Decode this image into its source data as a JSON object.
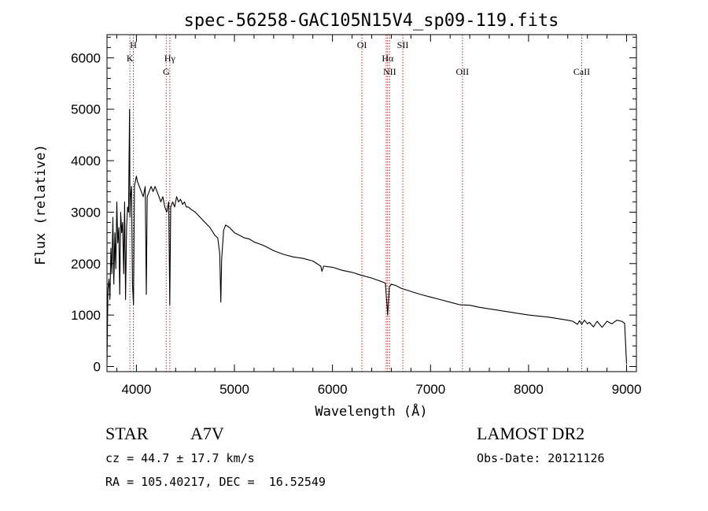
{
  "chart_data": {
    "type": "line",
    "title": "spec-56258-GAC105N15V4_sp09-119.fits",
    "xlabel": "Wavelength (Å)",
    "ylabel": "Flux (relative)",
    "xlim": [
      3700,
      9100
    ],
    "ylim": [
      -100,
      6450
    ],
    "xticks": [
      4000,
      5000,
      6000,
      7000,
      8000,
      9000
    ],
    "yticks": [
      0,
      1000,
      2000,
      3000,
      4000,
      5000,
      6000
    ],
    "xtick_labels": [
      "4000",
      "5000",
      "6000",
      "7000",
      "8000",
      "9000"
    ],
    "ytick_labels": [
      "0",
      "1000",
      "2000",
      "3000",
      "4000",
      "5000",
      "6000"
    ],
    "grid": false,
    "line_color": "#000000",
    "marker_color": "#cc2222",
    "spectral_lines": [
      {
        "wavelength": 3934,
        "label": "K",
        "row": 2
      },
      {
        "wavelength": 3969,
        "label": "H",
        "row": 1
      },
      {
        "wavelength": 4304,
        "label": "G",
        "row": 3
      },
      {
        "wavelength": 4341,
        "label": "Hγ",
        "row": 2
      },
      {
        "wavelength": 6300,
        "label": "OI",
        "row": 1
      },
      {
        "wavelength": 6548,
        "label": "",
        "row": 0
      },
      {
        "wavelength": 6563,
        "label": "Hα",
        "row": 2
      },
      {
        "wavelength": 6583,
        "label": "NII",
        "row": 3
      },
      {
        "wavelength": 6717,
        "label": "SII",
        "row": 1
      },
      {
        "wavelength": 7325,
        "label": "OII",
        "row": 3
      },
      {
        "wavelength": 8542,
        "label": "CaII",
        "row": 3
      }
    ],
    "series": [
      {
        "x": [
          3700,
          3710,
          3720,
          3730,
          3740,
          3750,
          3760,
          3770,
          3780,
          3790,
          3800,
          3810,
          3820,
          3830,
          3840,
          3850,
          3860,
          3870,
          3880,
          3889,
          3900,
          3910,
          3920,
          3930,
          3934,
          3940,
          3950,
          3960,
          3970,
          3980,
          3990,
          4000,
          4010,
          4030,
          4050,
          4070,
          4090,
          4101,
          4110,
          4130,
          4150,
          4170,
          4190,
          4210,
          4230,
          4250,
          4270,
          4290,
          4310,
          4330,
          4340,
          4350,
          4370,
          4390,
          4410,
          4430,
          4450,
          4470,
          4490,
          4510,
          4530,
          4560,
          4600,
          4650,
          4700,
          4750,
          4800,
          4830,
          4850,
          4861,
          4870,
          4890,
          4910,
          4950,
          5000,
          5050,
          5100,
          5150,
          5200,
          5300,
          5400,
          5500,
          5600,
          5700,
          5800,
          5880,
          5893,
          5910,
          6000,
          6100,
          6200,
          6300,
          6400,
          6500,
          6540,
          6563,
          6580,
          6600,
          6650,
          6700,
          6800,
          6900,
          7000,
          7100,
          7200,
          7300,
          7400,
          7500,
          7600,
          7700,
          7800,
          7900,
          8000,
          8100,
          8200,
          8300,
          8400,
          8450,
          8498,
          8520,
          8542,
          8570,
          8600,
          8620,
          8662,
          8700,
          8750,
          8800,
          8850,
          8900,
          8950,
          8980,
          9000
        ],
        "y": [
          100,
          1500,
          1700,
          1300,
          2300,
          1800,
          2900,
          1600,
          2600,
          1900,
          3200,
          2400,
          2700,
          1400,
          3000,
          2600,
          2800,
          1800,
          3200,
          1300,
          2700,
          3100,
          3000,
          5000,
          2900,
          3300,
          3500,
          1600,
          1200,
          3500,
          3600,
          3700,
          3600,
          3500,
          3400,
          3300,
          3500,
          1400,
          3300,
          3400,
          3500,
          3400,
          3500,
          3400,
          3300,
          3200,
          3300,
          3100,
          3000,
          3200,
          1200,
          3100,
          3200,
          3100,
          3300,
          3200,
          3250,
          3150,
          3200,
          3100,
          3100,
          3050,
          3000,
          2900,
          2800,
          2700,
          2550,
          2500,
          2200,
          1250,
          2100,
          2650,
          2750,
          2700,
          2600,
          2550,
          2500,
          2480,
          2420,
          2350,
          2250,
          2180,
          2130,
          2100,
          2050,
          1950,
          1850,
          1950,
          1930,
          1870,
          1830,
          1770,
          1720,
          1650,
          1620,
          1000,
          1550,
          1600,
          1570,
          1520,
          1460,
          1400,
          1350,
          1300,
          1250,
          1200,
          1190,
          1150,
          1120,
          1090,
          1060,
          1030,
          1000,
          980,
          960,
          930,
          900,
          880,
          820,
          890,
          820,
          900,
          830,
          860,
          770,
          880,
          760,
          880,
          830,
          900,
          880,
          840,
          50
        ]
      }
    ]
  },
  "info": {
    "object_class": "STAR",
    "subclass": "A7V",
    "survey": "LAMOST DR2",
    "cz": "cz = 44.7 ± 17.7 km/s",
    "obs_date": "Obs-Date: 20121126",
    "coords": "RA = 105.40217, DEC =  16.52549"
  }
}
